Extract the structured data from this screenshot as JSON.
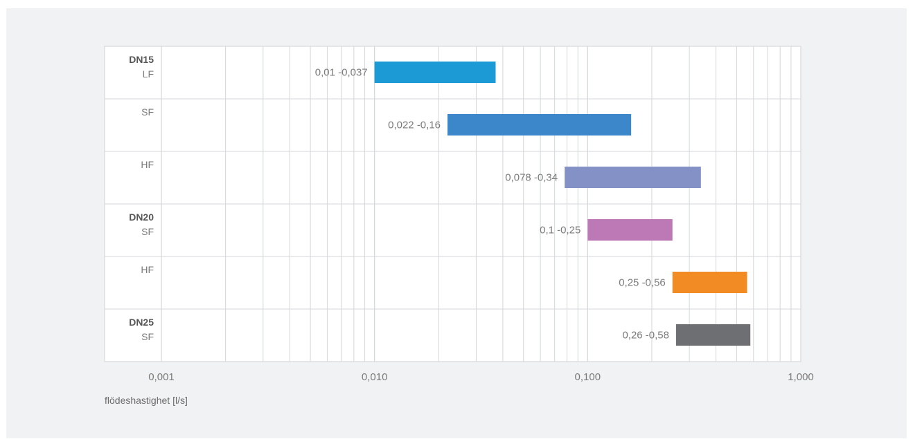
{
  "chart_data": {
    "type": "bar",
    "orientation": "horizontal-range",
    "xscale": "log",
    "xlim": [
      0.001,
      1.0
    ],
    "xticks": [
      {
        "value": 0.001,
        "label": "0,001"
      },
      {
        "value": 0.01,
        "label": "0,010"
      },
      {
        "value": 0.1,
        "label": "0,100"
      },
      {
        "value": 1.0,
        "label": "1,000"
      }
    ],
    "xlabel": "flödeshastighet [l/s]",
    "ylabel": "",
    "title": "",
    "grid": true,
    "rows": [
      {
        "group": "DN15",
        "category": "LF",
        "min": 0.01,
        "max": 0.037,
        "label": "0,01 -0,037",
        "color": "#1b9ad6"
      },
      {
        "group": "",
        "category": "SF",
        "min": 0.022,
        "max": 0.16,
        "label": "0,022 -0,16",
        "color": "#3b87c9"
      },
      {
        "group": "",
        "category": "HF",
        "min": 0.078,
        "max": 0.34,
        "label": "0,078 -0,34",
        "color": "#8491c6"
      },
      {
        "group": "DN20",
        "category": "SF",
        "min": 0.1,
        "max": 0.25,
        "label": "0,1 -0,25",
        "color": "#bd78b6"
      },
      {
        "group": "",
        "category": "HF",
        "min": 0.25,
        "max": 0.56,
        "label": "0,25 -0,56",
        "color": "#f28b23"
      },
      {
        "group": "DN25",
        "category": "SF",
        "min": 0.26,
        "max": 0.58,
        "label": "0,26 -0,58",
        "color": "#6e6f73"
      }
    ]
  },
  "colors": {
    "panel_bg": "#f1f2f3",
    "plot_bg": "#ffffff",
    "grid": "#d4d6d8",
    "text": "#7a7a7a",
    "group_text": "#555555"
  }
}
